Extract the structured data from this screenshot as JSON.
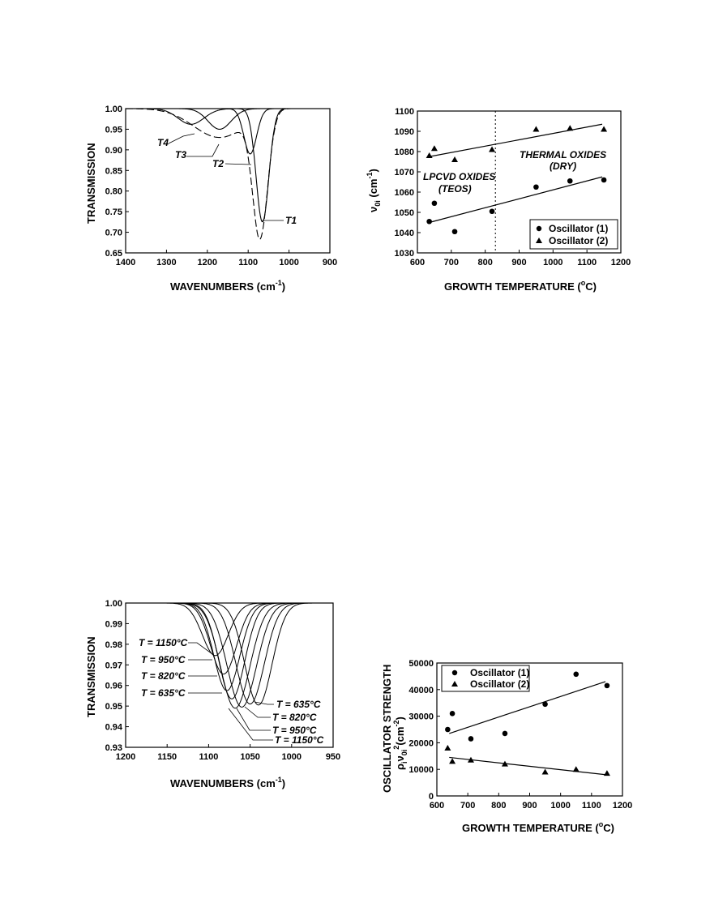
{
  "chart_data": [
    {
      "id": "transmission-vs-wavenumber-top",
      "type": "line",
      "xlabel": "WAVENUMBERS (cm",
      "xlabel_sup": "-1",
      "xlabel_end": ")",
      "ylabel": "TRANSMISSION",
      "xlim": [
        1400,
        900
      ],
      "ylim": [
        0.65,
        1.0
      ],
      "x_ticks": [
        "1400",
        "1300",
        "1200",
        "1100",
        "1000",
        "900"
      ],
      "y_ticks": [
        "1.00",
        "0.95",
        "0.90",
        "0.85",
        "0.80",
        "0.75",
        "0.70",
        "0.65"
      ],
      "series": [
        {
          "name": "T1",
          "style": "solid",
          "center": 1065,
          "min": 0.725
        },
        {
          "name": "T2",
          "style": "solid",
          "center": 1095,
          "min": 0.89
        },
        {
          "name": "T3",
          "style": "solid",
          "center": 1170,
          "min": 0.95
        },
        {
          "name": "T4",
          "style": "solid",
          "center": 1240,
          "min": 0.962
        },
        {
          "name": "",
          "style": "dashed",
          "center": 1070,
          "min": 0.697
        }
      ],
      "annotations": [
        "T1",
        "T2",
        "T3",
        "T4"
      ]
    },
    {
      "id": "frequency-vs-growth-temperature",
      "type": "scatter",
      "xlabel": "GROWTH TEMPERATURE (",
      "xlabel_deg": "o",
      "xlabel_end": "C)",
      "ylabel": "ν",
      "ylabel_sub": "0i",
      "ylabel_end": " (cm",
      "ylabel_sup": "-1",
      "ylabel_close": ")",
      "xlim": [
        600,
        1200
      ],
      "ylim": [
        1030,
        1100
      ],
      "x_ticks": [
        "600",
        "700",
        "800",
        "900",
        "1000",
        "1100",
        "1200"
      ],
      "y_ticks": [
        "1100",
        "1090",
        "1080",
        "1070",
        "1060",
        "1050",
        "1040",
        "1030"
      ],
      "divider_x": 830,
      "series": [
        {
          "name": "Oscillator (1)",
          "marker": "circle",
          "points": [
            [
              635,
              1045.5
            ],
            [
              650,
              1054.5
            ],
            [
              710,
              1040.5
            ],
            [
              820,
              1050.5
            ],
            [
              950,
              1062.5
            ],
            [
              1050,
              1065.5
            ],
            [
              1150,
              1066
            ]
          ],
          "fit": [
            [
              635,
              1045
            ],
            [
              1145,
              1067.5
            ]
          ]
        },
        {
          "name": "Oscillator (2)",
          "marker": "triangle",
          "points": [
            [
              635,
              1078
            ],
            [
              650,
              1081.5
            ],
            [
              710,
              1076
            ],
            [
              820,
              1081
            ],
            [
              950,
              1091
            ],
            [
              1050,
              1091.5
            ],
            [
              1150,
              1091
            ]
          ],
          "fit": [
            [
              635,
              1077.5
            ],
            [
              1145,
              1093.5
            ]
          ]
        }
      ],
      "annotations": [
        {
          "text": "LPCVD OXIDES",
          "sub": "(TEOS)"
        },
        {
          "text": "THERMAL OXIDES",
          "sub": "(DRY)"
        }
      ]
    },
    {
      "id": "transmission-vs-wavenumber-bottom",
      "type": "line",
      "xlabel": "WAVENUMBERS (cm",
      "xlabel_sup": "-1",
      "xlabel_end": ")",
      "ylabel": "TRANSMISSION",
      "xlim": [
        1200,
        950
      ],
      "ylim": [
        0.93,
        1.0
      ],
      "x_ticks": [
        "1200",
        "1150",
        "1100",
        "1050",
        "1000",
        "950"
      ],
      "y_ticks": [
        "1.00",
        "0.99",
        "0.98",
        "0.97",
        "0.96",
        "0.95",
        "0.94",
        "0.93"
      ],
      "series": [
        {
          "name": "T = 1150°C",
          "center": 1092,
          "min": 0.9745,
          "width": 22
        },
        {
          "name": "T = 950°C",
          "center": 1082,
          "min": 0.9655,
          "width": 22
        },
        {
          "name": "T = 820°C",
          "center": 1078,
          "min": 0.9575,
          "width": 22
        },
        {
          "name": "T = 635°C",
          "center": 1072,
          "min": 0.9535,
          "width": 22
        },
        {
          "name": "T = 635°C",
          "center": 1040,
          "min": 0.9505,
          "width": 23
        },
        {
          "name": "T = 820°C",
          "center": 1050,
          "min": 0.951,
          "width": 24
        },
        {
          "name": "T = 950°C",
          "center": 1060,
          "min": 0.9495,
          "width": 25
        },
        {
          "name": "T = 1150°C",
          "center": 1068,
          "min": 0.949,
          "width": 25
        }
      ],
      "labels_left": [
        "T = 1150°C",
        "T = 950°C",
        "T = 820°C",
        "T = 635°C"
      ],
      "labels_right": [
        "T = 635°C",
        "T = 820°C",
        "T = 950°C",
        "T = 1150°C"
      ]
    },
    {
      "id": "oscillator-strength-vs-growth-temperature",
      "type": "scatter",
      "xlabel": "GROWTH TEMPERATURE (",
      "xlabel_deg": "o",
      "xlabel_end": "C)",
      "ylabel_line1": "OSCILLATOR STRENGTH",
      "ylabel_line2": "ρ",
      "ylabel_line2_sub": "i",
      "ylabel_line2_nu": "ν",
      "ylabel_line2_sub2": "0i",
      "ylabel_line2_sup": "2",
      "ylabel_line2_end": "(cm",
      "ylabel_line2_sup2": "-2",
      "ylabel_line2_close": ")",
      "xlim": [
        600,
        1200
      ],
      "ylim": [
        0,
        50000
      ],
      "x_ticks": [
        "600",
        "700",
        "800",
        "900",
        "1000",
        "1100",
        "1200"
      ],
      "y_ticks": [
        "50000",
        "40000",
        "30000",
        "20000",
        "10000",
        "0"
      ],
      "series": [
        {
          "name": "Oscillator (1)",
          "marker": "circle",
          "points": [
            [
              635,
              25000
            ],
            [
              650,
              31000
            ],
            [
              710,
              21500
            ],
            [
              820,
              23500
            ],
            [
              950,
              34500
            ],
            [
              1050,
              45800
            ],
            [
              1150,
              41500
            ]
          ],
          "fit": [
            [
              640,
              23500
            ],
            [
              1145,
              43000
            ]
          ]
        },
        {
          "name": "Oscillator (2)",
          "marker": "triangle",
          "points": [
            [
              635,
              18000
            ],
            [
              650,
              13000
            ],
            [
              710,
              13500
            ],
            [
              820,
              12000
            ],
            [
              950,
              9000
            ],
            [
              1050,
              10000
            ],
            [
              1150,
              8500
            ]
          ],
          "fit": [
            [
              640,
              14500
            ],
            [
              1145,
              8000
            ]
          ]
        }
      ]
    }
  ]
}
